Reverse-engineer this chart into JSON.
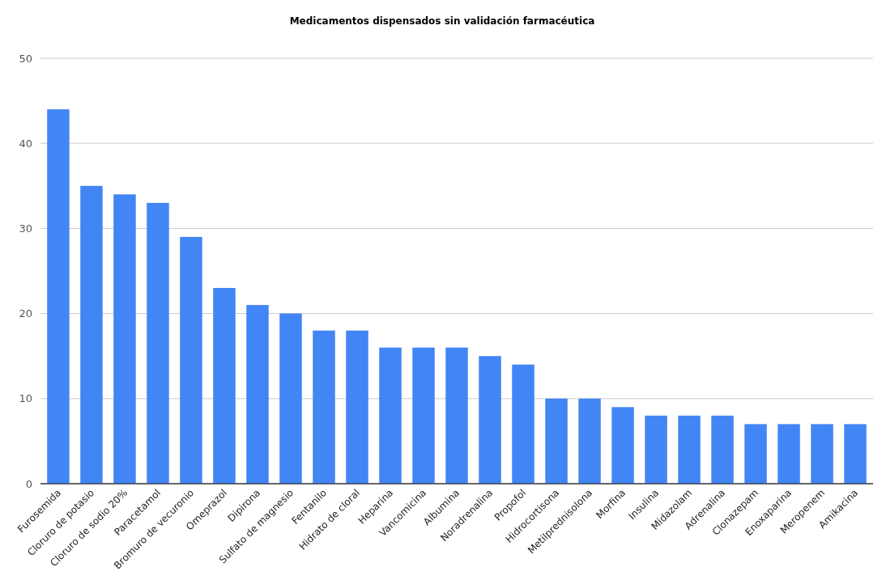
{
  "chart_data": {
    "type": "bar",
    "title": "Medicamentos dispensados sin validación farmacéutica",
    "categories": [
      "Furosemida",
      "Cloruro de potasio",
      "Cloruro de sodio 20%",
      "Paracetamol",
      "Bromuro de vecuronio",
      "Omeprazol",
      "Dipirona",
      "Sulfato de magnesio",
      "Fentanilo",
      "Hidrato de cloral",
      "Heparina",
      "Vancomicina",
      "Albumina",
      "Noradrenalina",
      "Propofol",
      "Hidrocortisona",
      "Metilprednisolona",
      "Morfina",
      "Insulina",
      "Midazolam",
      "Adrenalina",
      "Clonazepam",
      "Enoxaparina",
      "Meropenem",
      "Amikacina"
    ],
    "values": [
      44,
      35,
      34,
      33,
      29,
      23,
      21,
      20,
      18,
      18,
      16,
      16,
      16,
      15,
      14,
      10,
      10,
      9,
      8,
      8,
      8,
      7,
      7,
      7,
      7
    ],
    "color": "#4285f4",
    "ylim": [
      0,
      50
    ],
    "yticks": [
      0,
      10,
      20,
      30,
      40,
      50
    ],
    "grid": "y"
  }
}
